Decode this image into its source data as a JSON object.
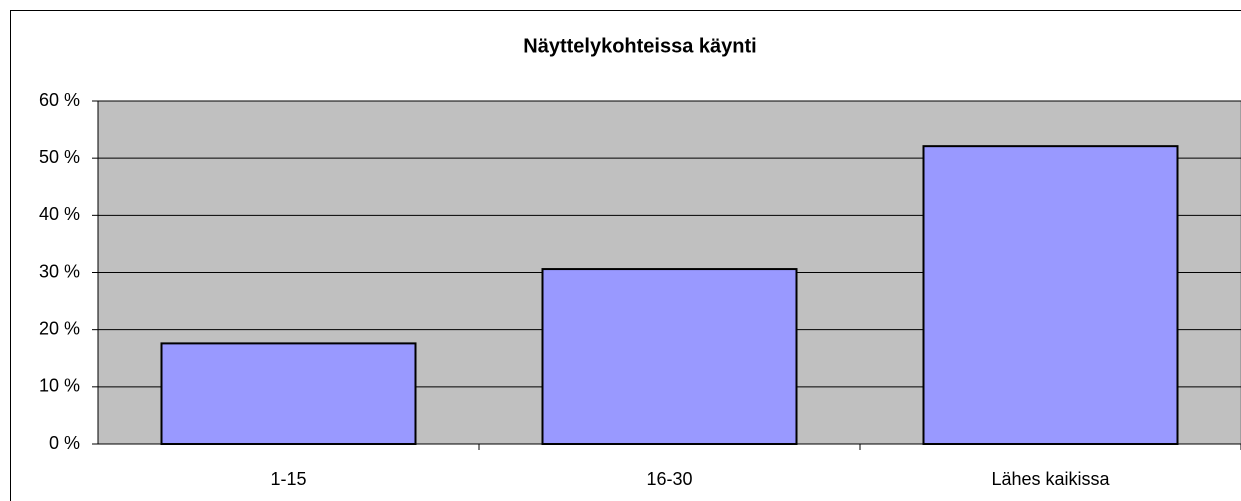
{
  "chart_data": {
    "type": "bar",
    "title": "Näyttelykohteissa käynti",
    "categories": [
      "1-15",
      "16-30",
      "Lähes kaikissa"
    ],
    "values": [
      17.6,
      30.6,
      52.1
    ],
    "color": "#9999ff",
    "ylim": [
      0,
      60
    ],
    "yticks": [
      {
        "value": 0,
        "label": "0 %"
      },
      {
        "value": 10,
        "label": "10 %"
      },
      {
        "value": 20,
        "label": "20 %"
      },
      {
        "value": 30,
        "label": "30 %"
      },
      {
        "value": 40,
        "label": "40 %"
      },
      {
        "value": 50,
        "label": "50 %"
      },
      {
        "value": 60,
        "label": "60 %"
      }
    ],
    "grid": true,
    "plot_background": "#c0c0c0"
  }
}
